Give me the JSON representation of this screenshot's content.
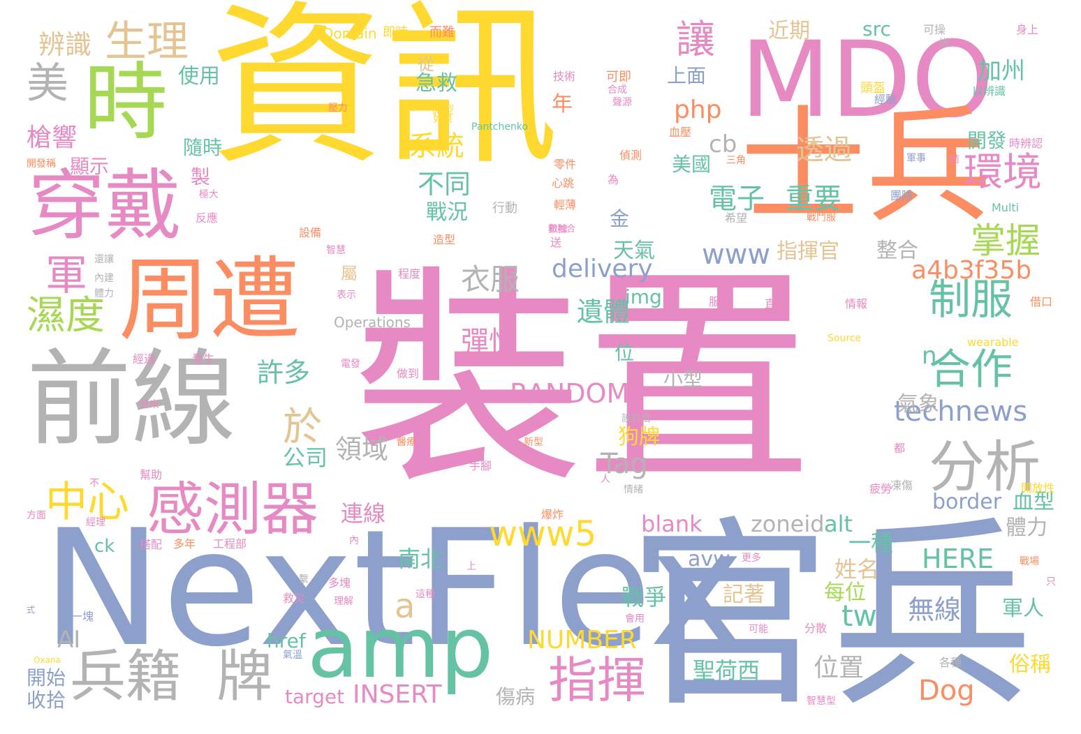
{
  "colors": {
    "pink": "#e78ac3",
    "yellow": "#ffd92f",
    "blue": "#8da0cb",
    "green": "#66c2a5",
    "orange": "#fc8d62",
    "lime": "#a6d854",
    "tan": "#e5c494",
    "gray": "#b3b3b3"
  },
  "words": [
    {
      "text": "裝置",
      "color": "pink"
    },
    {
      "text": "資訊",
      "color": "yellow"
    },
    {
      "text": "NextFlex",
      "color": "blue"
    },
    {
      "text": "前線",
      "color": "gray"
    },
    {
      "text": "MDO",
      "color": "pink"
    },
    {
      "text": "士兵",
      "color": "orange"
    },
    {
      "text": "官兵",
      "color": "blue"
    },
    {
      "text": "周遭",
      "color": "orange"
    },
    {
      "text": "穿戴",
      "color": "pink"
    },
    {
      "text": "時",
      "color": "lime"
    },
    {
      "text": "amp",
      "color": "green"
    },
    {
      "text": "兵籍",
      "color": "gray"
    },
    {
      "text": "牌",
      "color": "gray"
    },
    {
      "text": "感測器",
      "color": "pink"
    },
    {
      "text": "分析",
      "color": "gray"
    },
    {
      "text": "指揮",
      "color": "pink"
    },
    {
      "text": "生理",
      "color": "tan"
    },
    {
      "text": "制服",
      "color": "green"
    },
    {
      "text": "環境",
      "color": "pink"
    },
    {
      "text": "合作",
      "color": "green"
    },
    {
      "text": "中心",
      "color": "yellow"
    },
    {
      "text": "濕度",
      "color": "lime"
    },
    {
      "text": "掌握",
      "color": "lime"
    },
    {
      "text": "www5",
      "color": "yellow"
    },
    {
      "text": "technews",
      "color": "blue"
    },
    {
      "text": "a4b3f35b",
      "color": "orange"
    },
    {
      "text": "RANDOM",
      "color": "pink"
    },
    {
      "text": "delivery",
      "color": "blue"
    },
    {
      "text": "NUMBER",
      "color": "yellow"
    },
    {
      "text": "INSERT",
      "color": "pink"
    },
    {
      "text": "HERE",
      "color": "green"
    },
    {
      "text": "Dog",
      "color": "orange"
    },
    {
      "text": "www",
      "color": "blue"
    },
    {
      "text": "Tag",
      "color": "gray"
    },
    {
      "text": "讓",
      "color": "pink"
    },
    {
      "text": "美",
      "color": "gray"
    },
    {
      "text": "軍",
      "color": "pink"
    },
    {
      "text": "於",
      "color": "tan"
    },
    {
      "text": "a",
      "color": "tan"
    },
    {
      "text": "tw",
      "color": "green"
    },
    {
      "text": "電子",
      "color": "green"
    },
    {
      "text": "重要",
      "color": "green"
    },
    {
      "text": "透過",
      "color": "tan"
    },
    {
      "text": "系統",
      "color": "yellow"
    },
    {
      "text": "不同",
      "color": "green"
    },
    {
      "text": "php",
      "color": "orange"
    },
    {
      "text": "cb",
      "color": "gray"
    },
    {
      "text": "加州",
      "color": "green"
    },
    {
      "text": "近期",
      "color": "tan"
    },
    {
      "text": "src",
      "color": "green"
    },
    {
      "text": "辨識",
      "color": "tan"
    },
    {
      "text": "使用",
      "color": "green"
    },
    {
      "text": "槍響",
      "color": "pink"
    },
    {
      "text": "顯示",
      "color": "pink"
    },
    {
      "text": "隨時",
      "color": "green"
    },
    {
      "text": "急救",
      "color": "green"
    },
    {
      "text": "年",
      "color": "orange"
    },
    {
      "text": "衣服",
      "color": "gray"
    },
    {
      "text": "彈性",
      "color": "pink"
    },
    {
      "text": "遺體",
      "color": "green"
    },
    {
      "text": "許多",
      "color": "green"
    },
    {
      "text": "領域",
      "color": "gray"
    },
    {
      "text": "公司",
      "color": "green"
    },
    {
      "text": "連線",
      "color": "pink"
    },
    {
      "text": "南北",
      "color": "green"
    },
    {
      "text": "戰況",
      "color": "green"
    },
    {
      "text": "天氣",
      "color": "green"
    },
    {
      "text": "指揮官",
      "color": "tan"
    },
    {
      "text": "整合",
      "color": "gray"
    },
    {
      "text": "氣象",
      "color": "gray"
    },
    {
      "text": "n",
      "color": "green"
    },
    {
      "text": "img",
      "color": "green"
    },
    {
      "text": "位",
      "color": "green"
    },
    {
      "text": "狗牌",
      "color": "yellow"
    },
    {
      "text": "小型",
      "color": "gray"
    },
    {
      "text": "zoneid",
      "color": "gray"
    },
    {
      "text": "alt",
      "color": "green"
    },
    {
      "text": "border",
      "color": "blue"
    },
    {
      "text": "血型",
      "color": "green"
    },
    {
      "text": "blank",
      "color": "pink"
    },
    {
      "text": "一種",
      "color": "green"
    },
    {
      "text": "姓名",
      "color": "tan"
    },
    {
      "text": "體力",
      "color": "gray"
    },
    {
      "text": "avw",
      "color": "blue"
    },
    {
      "text": "記著",
      "color": "tan"
    },
    {
      "text": "每位",
      "color": "lime"
    },
    {
      "text": "軍人",
      "color": "green"
    },
    {
      "text": "無線",
      "color": "blue"
    },
    {
      "text": "戰爭",
      "color": "green"
    },
    {
      "text": "位置",
      "color": "gray"
    },
    {
      "text": "聖荷西",
      "color": "green"
    },
    {
      "text": "俗稱",
      "color": "yellow"
    },
    {
      "text": "傷病",
      "color": "gray"
    },
    {
      "text": "target",
      "color": "pink"
    },
    {
      "text": "href",
      "color": "green"
    },
    {
      "text": "開始",
      "color": "blue"
    },
    {
      "text": "收拾",
      "color": "blue"
    },
    {
      "text": "AI",
      "color": "gray"
    },
    {
      "text": "ck",
      "color": "green"
    },
    {
      "text": "美國",
      "color": "green"
    },
    {
      "text": "上面",
      "color": "blue"
    },
    {
      "text": "金",
      "color": "blue"
    },
    {
      "text": "製",
      "color": "pink"
    },
    {
      "text": "從",
      "color": "tan"
    },
    {
      "text": "屬",
      "color": "tan"
    },
    {
      "text": "開發",
      "color": "green"
    },
    {
      "text": "Operations",
      "color": "gray"
    },
    {
      "text": "Domain",
      "color": "yellow"
    },
    {
      "text": "即時",
      "color": "yellow"
    },
    {
      "text": "而難",
      "color": "orange"
    },
    {
      "text": "可操",
      "color": "gray"
    },
    {
      "text": "身上",
      "color": "pink"
    },
    {
      "text": "技術",
      "color": "pink"
    },
    {
      "text": "可即",
      "color": "orange"
    },
    {
      "text": "頭盔",
      "color": "yellow"
    },
    {
      "text": "以辨識",
      "color": "green"
    },
    {
      "text": "經驗",
      "color": "blue"
    },
    {
      "text": "壓力",
      "color": "orange"
    },
    {
      "text": "微型",
      "color": "yellow"
    },
    {
      "text": "Pantchenko",
      "color": "green"
    },
    {
      "text": "血壓",
      "color": "orange"
    },
    {
      "text": "時辨認",
      "color": "pink"
    },
    {
      "text": "開發稱",
      "color": "orange"
    },
    {
      "text": "零件",
      "color": "orange"
    },
    {
      "text": "偵測",
      "color": "orange"
    },
    {
      "text": "三角",
      "color": "orange"
    },
    {
      "text": "軍事",
      "color": "blue"
    },
    {
      "text": "心跳",
      "color": "orange"
    },
    {
      "text": "團隊",
      "color": "blue"
    },
    {
      "text": "行動",
      "color": "gray"
    },
    {
      "text": "輕薄",
      "color": "orange"
    },
    {
      "text": "Multi",
      "color": "green"
    },
    {
      "text": "反應",
      "color": "pink"
    },
    {
      "text": "設備",
      "color": "orange"
    },
    {
      "text": "造型",
      "color": "orange"
    },
    {
      "text": "希望",
      "color": "gray"
    },
    {
      "text": "戰鬥服",
      "color": "orange"
    },
    {
      "text": "智慧",
      "color": "pink"
    },
    {
      "text": "程度",
      "color": "pink"
    },
    {
      "text": "服裝",
      "color": "pink"
    },
    {
      "text": "直接",
      "color": "pink"
    },
    {
      "text": "情報",
      "color": "pink"
    },
    {
      "text": "借口",
      "color": "orange"
    },
    {
      "text": "Source",
      "color": "yellow"
    },
    {
      "text": "wearable",
      "color": "yellow"
    },
    {
      "text": "經過",
      "color": "pink"
    },
    {
      "text": "發生",
      "color": "pink"
    },
    {
      "text": "電發",
      "color": "pink"
    },
    {
      "text": "做到",
      "color": "pink"
    },
    {
      "text": "將來",
      "color": "pink"
    },
    {
      "text": "醫療",
      "color": "orange"
    },
    {
      "text": "新型",
      "color": "orange"
    },
    {
      "text": "手腳",
      "color": "pink"
    },
    {
      "text": "都",
      "color": "pink"
    },
    {
      "text": "凍傷",
      "color": "gray"
    },
    {
      "text": "幫助",
      "color": "pink"
    },
    {
      "text": "情緒",
      "color": "gray"
    },
    {
      "text": "方面",
      "color": "pink"
    },
    {
      "text": "經理",
      "color": "pink"
    },
    {
      "text": "搭配",
      "color": "pink"
    },
    {
      "text": "多年",
      "color": "orange"
    },
    {
      "text": "工程部",
      "color": "pink"
    },
    {
      "text": "爆炸",
      "color": "orange"
    },
    {
      "text": "疲勞",
      "color": "pink"
    },
    {
      "text": "開放性",
      "color": "yellow"
    },
    {
      "text": "更多",
      "color": "pink"
    },
    {
      "text": "戰場",
      "color": "orange"
    },
    {
      "text": "多塊",
      "color": "pink"
    },
    {
      "text": "理解",
      "color": "pink"
    },
    {
      "text": "救災",
      "color": "pink"
    },
    {
      "text": "這種",
      "color": "pink"
    },
    {
      "text": "一塊",
      "color": "blue"
    },
    {
      "text": "會用",
      "color": "pink"
    },
    {
      "text": "可能",
      "color": "pink"
    },
    {
      "text": "分散",
      "color": "pink"
    },
    {
      "text": "各種",
      "color": "gray"
    },
    {
      "text": "智慧型",
      "color": "pink"
    },
    {
      "text": "Oxana",
      "color": "yellow"
    },
    {
      "text": "氣溫",
      "color": "blue"
    },
    {
      "text": "設計出",
      "color": "gray"
    },
    {
      "text": "式",
      "color": "blue"
    },
    {
      "text": "內建",
      "color": "gray"
    },
    {
      "text": "還讓",
      "color": "gray"
    },
    {
      "text": "表示",
      "color": "pink"
    },
    {
      "text": "體力",
      "color": "gray"
    },
    {
      "text": "繫",
      "color": "gray"
    },
    {
      "text": "極大",
      "color": "pink"
    },
    {
      "text": "為",
      "color": "pink"
    },
    {
      "text": "送",
      "color": "pink"
    },
    {
      "text": "人",
      "color": "pink"
    },
    {
      "text": "內",
      "color": "pink"
    },
    {
      "text": "上",
      "color": "pink"
    },
    {
      "text": "只",
      "color": "pink"
    },
    {
      "text": "不",
      "color": "pink"
    },
    {
      "text": "綁",
      "color": "gray"
    },
    {
      "text": "如果",
      "color": "yellow"
    },
    {
      "text": "結",
      "color": "pink"
    },
    {
      "text": "合成",
      "color": "pink"
    },
    {
      "text": "聲源",
      "color": "pink"
    },
    {
      "text": "數據",
      "color": "pink"
    },
    {
      "text": "和融合",
      "color": "pink"
    }
  ]
}
